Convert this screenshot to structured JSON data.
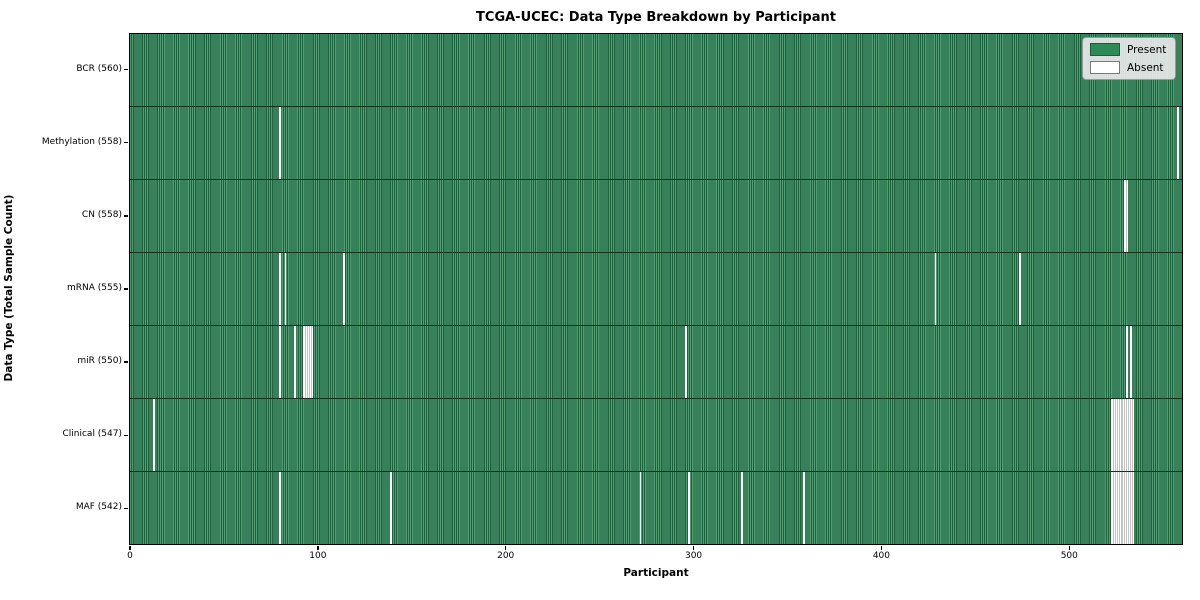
{
  "figure": {
    "title": "TCGA-UCEC: Data Type Breakdown by Participant",
    "x_axis_label": "Participant",
    "y_axis_label": "Data Type (Total Sample Count)"
  },
  "legend": {
    "items": [
      {
        "label": "Present",
        "color": "#2e8b57"
      },
      {
        "label": "Absent",
        "color": "#ffffff"
      }
    ]
  },
  "chart_data": {
    "type": "heatmap",
    "title": "TCGA-UCEC: Data Type Breakdown by Participant",
    "xlabel": "Participant",
    "ylabel": "Data Type (Total Sample Count)",
    "legend_position": "upper right",
    "n_participants": 560,
    "x_ticks": [
      0,
      100,
      200,
      300,
      400,
      500
    ],
    "xlim": [
      0,
      560
    ],
    "colors": {
      "present_light": "#4e9e72",
      "present_dark": "#226140",
      "present_legend": "#2e8b57",
      "absent": "#ffffff",
      "row_divider": "#11331f"
    },
    "rows": [
      {
        "data_type": "BCR",
        "label": "BCR (560)",
        "present_count": 560,
        "missing_participants": []
      },
      {
        "data_type": "Methylation",
        "label": "Methylation (558)",
        "present_count": 558,
        "missing_participants": [
          79,
          557
        ]
      },
      {
        "data_type": "CN",
        "label": "CN (558)",
        "present_count": 558,
        "missing_participants": [
          529,
          530
        ]
      },
      {
        "data_type": "mRNA",
        "label": "mRNA (555)",
        "present_count": 555,
        "missing_participants": [
          79,
          82,
          113,
          428,
          473
        ]
      },
      {
        "data_type": "miR",
        "label": "miR (550)",
        "present_count": 550,
        "missing_participants": [
          79,
          87,
          92,
          93,
          94,
          95,
          96,
          295,
          530,
          532
        ]
      },
      {
        "data_type": "Clinical",
        "label": "Clinical (547)",
        "present_count": 547,
        "missing_participants": [
          12,
          522,
          523,
          524,
          525,
          526,
          527,
          528,
          529,
          530,
          531,
          532,
          533
        ]
      },
      {
        "data_type": "MAF",
        "label": "MAF (542)",
        "present_count": 542,
        "missing_participants": [
          79,
          138,
          271,
          297,
          325,
          358,
          522,
          523,
          524,
          525,
          526,
          527,
          528,
          529,
          530,
          531,
          532,
          533
        ]
      }
    ]
  }
}
